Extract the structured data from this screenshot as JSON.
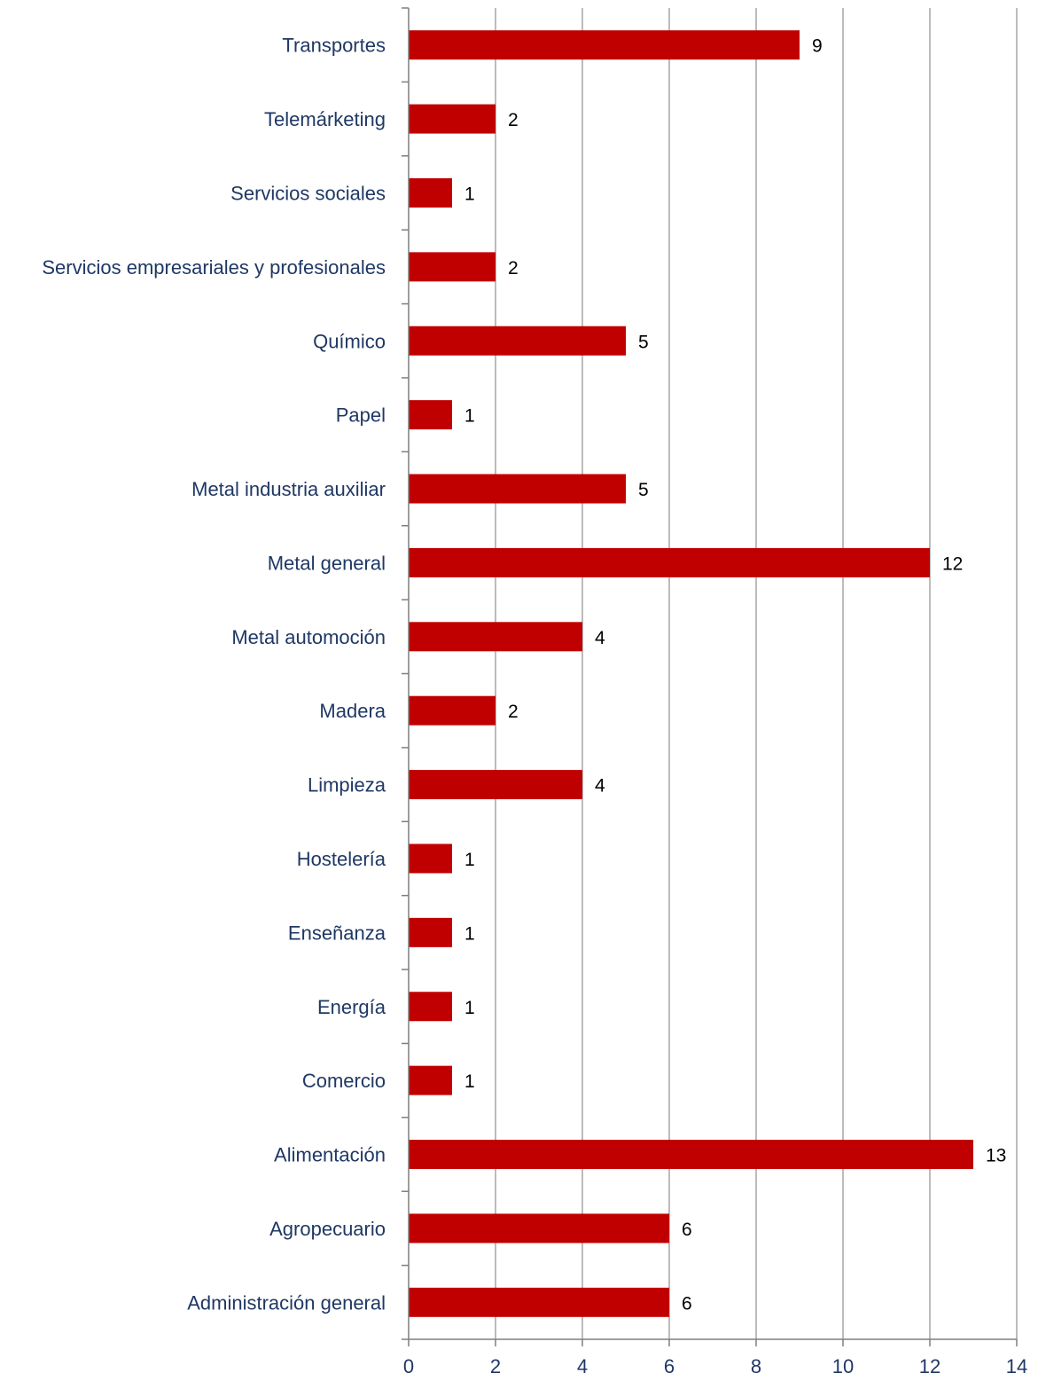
{
  "chart_data": {
    "type": "bar",
    "orientation": "horizontal",
    "categories": [
      "Transportes",
      "Telemárketing",
      "Servicios sociales",
      "Servicios empresariales y profesionales",
      "Químico",
      "Papel",
      "Metal industria auxiliar",
      "Metal general",
      "Metal automoción",
      "Madera",
      "Limpieza",
      "Hostelería",
      "Enseñanza",
      "Energía",
      "Comercio",
      "Alimentación",
      "Agropecuario",
      "Administración general"
    ],
    "values": [
      9,
      2,
      1,
      2,
      5,
      1,
      5,
      12,
      4,
      2,
      4,
      1,
      1,
      1,
      1,
      13,
      6,
      6
    ],
    "xlim": [
      0,
      14
    ],
    "x_ticks": [
      0,
      2,
      4,
      6,
      8,
      10,
      12,
      14
    ],
    "grid": "vertical",
    "data_labels": true,
    "legend": "none",
    "bar_color": "#c00000",
    "label_color": "#1f3864"
  }
}
